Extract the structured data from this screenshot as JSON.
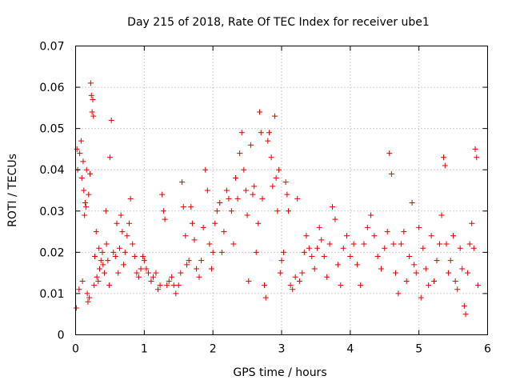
{
  "chart_data": {
    "type": "scatter",
    "title": "Day 215 of 2018, Rate Of TEC Index for receiver ube1",
    "xlabel": "GPS time / hours",
    "ylabel": "ROTI / TECUs",
    "xlim": [
      0,
      6
    ],
    "ylim": [
      0,
      0.07
    ],
    "xticks": [
      "0",
      "1",
      "2",
      "3",
      "4",
      "5",
      "6"
    ],
    "yticks": [
      "0",
      "0.01",
      "0.02",
      "0.03",
      "0.04",
      "0.05",
      "0.06",
      "0.07"
    ],
    "grid": true,
    "marker": "+",
    "color": "#e00000",
    "series": [
      {
        "name": "ube1",
        "points": [
          [
            0.01,
            0.0065
          ],
          [
            0.02,
            0.045
          ],
          [
            0.03,
            0.04
          ],
          [
            0.05,
            0.011
          ],
          [
            0.06,
            0.044
          ],
          [
            0.08,
            0.047
          ],
          [
            0.09,
            0.038
          ],
          [
            0.1,
            0.013
          ],
          [
            0.11,
            0.042
          ],
          [
            0.12,
            0.035
          ],
          [
            0.13,
            0.029
          ],
          [
            0.14,
            0.032
          ],
          [
            0.15,
            0.031
          ],
          [
            0.16,
            0.04
          ],
          [
            0.17,
            0.01
          ],
          [
            0.18,
            0.008
          ],
          [
            0.19,
            0.034
          ],
          [
            0.2,
            0.009
          ],
          [
            0.21,
            0.039
          ],
          [
            0.22,
            0.061
          ],
          [
            0.23,
            0.058
          ],
          [
            0.24,
            0.054
          ],
          [
            0.25,
            0.057
          ],
          [
            0.26,
            0.053
          ],
          [
            0.27,
            0.012
          ],
          [
            0.28,
            0.019
          ],
          [
            0.3,
            0.025
          ],
          [
            0.31,
            0.014
          ],
          [
            0.33,
            0.013
          ],
          [
            0.34,
            0.021
          ],
          [
            0.35,
            0.016
          ],
          [
            0.37,
            0.018
          ],
          [
            0.39,
            0.02
          ],
          [
            0.4,
            0.017
          ],
          [
            0.42,
            0.015
          ],
          [
            0.44,
            0.03
          ],
          [
            0.45,
            0.022
          ],
          [
            0.47,
            0.018
          ],
          [
            0.49,
            0.012
          ],
          [
            0.5,
            0.043
          ],
          [
            0.52,
            0.052
          ],
          [
            0.55,
            0.02
          ],
          [
            0.58,
            0.019
          ],
          [
            0.6,
            0.027
          ],
          [
            0.62,
            0.015
          ],
          [
            0.64,
            0.021
          ],
          [
            0.66,
            0.029
          ],
          [
            0.68,
            0.025
          ],
          [
            0.7,
            0.017
          ],
          [
            0.72,
            0.02
          ],
          [
            0.75,
            0.024
          ],
          [
            0.78,
            0.027
          ],
          [
            0.8,
            0.033
          ],
          [
            0.83,
            0.022
          ],
          [
            0.86,
            0.019
          ],
          [
            0.89,
            0.015
          ],
          [
            0.92,
            0.014
          ],
          [
            0.95,
            0.016
          ],
          [
            0.98,
            0.019
          ],
          [
            1.0,
            0.018
          ],
          [
            1.03,
            0.016
          ],
          [
            1.06,
            0.015
          ],
          [
            1.1,
            0.013
          ],
          [
            1.13,
            0.014
          ],
          [
            1.17,
            0.015
          ],
          [
            1.2,
            0.011
          ],
          [
            1.23,
            0.012
          ],
          [
            1.26,
            0.034
          ],
          [
            1.28,
            0.03
          ],
          [
            1.3,
            0.028
          ],
          [
            1.33,
            0.012
          ],
          [
            1.36,
            0.013
          ],
          [
            1.4,
            0.014
          ],
          [
            1.43,
            0.012
          ],
          [
            1.46,
            0.01
          ],
          [
            1.5,
            0.012
          ],
          [
            1.53,
            0.015
          ],
          [
            1.55,
            0.037
          ],
          [
            1.57,
            0.031
          ],
          [
            1.6,
            0.024
          ],
          [
            1.62,
            0.017
          ],
          [
            1.65,
            0.018
          ],
          [
            1.68,
            0.031
          ],
          [
            1.7,
            0.027
          ],
          [
            1.73,
            0.023
          ],
          [
            1.76,
            0.016
          ],
          [
            1.8,
            0.014
          ],
          [
            1.83,
            0.018
          ],
          [
            1.86,
            0.026
          ],
          [
            1.89,
            0.04
          ],
          [
            1.92,
            0.035
          ],
          [
            1.95,
            0.022
          ],
          [
            1.98,
            0.016
          ],
          [
            2.0,
            0.02
          ],
          [
            2.03,
            0.027
          ],
          [
            2.06,
            0.03
          ],
          [
            2.1,
            0.032
          ],
          [
            2.13,
            0.02
          ],
          [
            2.16,
            0.025
          ],
          [
            2.2,
            0.035
          ],
          [
            2.23,
            0.033
          ],
          [
            2.27,
            0.03
          ],
          [
            2.3,
            0.022
          ],
          [
            2.33,
            0.038
          ],
          [
            2.36,
            0.033
          ],
          [
            2.39,
            0.044
          ],
          [
            2.42,
            0.049
          ],
          [
            2.45,
            0.04
          ],
          [
            2.48,
            0.035
          ],
          [
            2.5,
            0.029
          ],
          [
            2.52,
            0.013
          ],
          [
            2.55,
            0.046
          ],
          [
            2.58,
            0.034
          ],
          [
            2.6,
            0.036
          ],
          [
            2.63,
            0.02
          ],
          [
            2.66,
            0.027
          ],
          [
            2.68,
            0.054
          ],
          [
            2.7,
            0.049
          ],
          [
            2.72,
            0.033
          ],
          [
            2.75,
            0.012
          ],
          [
            2.77,
            0.009
          ],
          [
            2.8,
            0.047
          ],
          [
            2.82,
            0.049
          ],
          [
            2.85,
            0.043
          ],
          [
            2.87,
            0.036
          ],
          [
            2.9,
            0.053
          ],
          [
            2.92,
            0.038
          ],
          [
            2.94,
            0.03
          ],
          [
            2.96,
            0.04
          ],
          [
            2.98,
            0.015
          ],
          [
            3.0,
            0.018
          ],
          [
            3.03,
            0.02
          ],
          [
            3.06,
            0.037
          ],
          [
            3.08,
            0.034
          ],
          [
            3.1,
            0.03
          ],
          [
            3.13,
            0.012
          ],
          [
            3.16,
            0.011
          ],
          [
            3.2,
            0.014
          ],
          [
            3.23,
            0.033
          ],
          [
            3.26,
            0.013
          ],
          [
            3.3,
            0.015
          ],
          [
            3.33,
            0.02
          ],
          [
            3.36,
            0.024
          ],
          [
            3.4,
            0.021
          ],
          [
            3.44,
            0.019
          ],
          [
            3.48,
            0.016
          ],
          [
            3.52,
            0.021
          ],
          [
            3.55,
            0.026
          ],
          [
            3.58,
            0.023
          ],
          [
            3.62,
            0.019
          ],
          [
            3.66,
            0.014
          ],
          [
            3.7,
            0.022
          ],
          [
            3.74,
            0.031
          ],
          [
            3.78,
            0.028
          ],
          [
            3.82,
            0.017
          ],
          [
            3.86,
            0.012
          ],
          [
            3.9,
            0.021
          ],
          [
            3.95,
            0.024
          ],
          [
            4.0,
            0.019
          ],
          [
            4.05,
            0.022
          ],
          [
            4.1,
            0.017
          ],
          [
            4.15,
            0.012
          ],
          [
            4.2,
            0.022
          ],
          [
            4.25,
            0.026
          ],
          [
            4.3,
            0.029
          ],
          [
            4.35,
            0.024
          ],
          [
            4.4,
            0.019
          ],
          [
            4.45,
            0.016
          ],
          [
            4.5,
            0.021
          ],
          [
            4.54,
            0.025
          ],
          [
            4.57,
            0.044
          ],
          [
            4.6,
            0.039
          ],
          [
            4.63,
            0.022
          ],
          [
            4.66,
            0.015
          ],
          [
            4.7,
            0.01
          ],
          [
            4.74,
            0.022
          ],
          [
            4.78,
            0.025
          ],
          [
            4.82,
            0.013
          ],
          [
            4.86,
            0.019
          ],
          [
            4.9,
            0.032
          ],
          [
            4.93,
            0.017
          ],
          [
            4.96,
            0.015
          ],
          [
            5.0,
            0.026
          ],
          [
            5.03,
            0.009
          ],
          [
            5.06,
            0.021
          ],
          [
            5.1,
            0.016
          ],
          [
            5.14,
            0.012
          ],
          [
            5.18,
            0.024
          ],
          [
            5.22,
            0.013
          ],
          [
            5.26,
            0.018
          ],
          [
            5.3,
            0.022
          ],
          [
            5.33,
            0.029
          ],
          [
            5.36,
            0.043
          ],
          [
            5.38,
            0.041
          ],
          [
            5.4,
            0.022
          ],
          [
            5.43,
            0.015
          ],
          [
            5.46,
            0.018
          ],
          [
            5.5,
            0.024
          ],
          [
            5.53,
            0.013
          ],
          [
            5.56,
            0.011
          ],
          [
            5.6,
            0.021
          ],
          [
            5.63,
            0.016
          ],
          [
            5.66,
            0.007
          ],
          [
            5.68,
            0.005
          ],
          [
            5.71,
            0.015
          ],
          [
            5.74,
            0.022
          ],
          [
            5.77,
            0.027
          ],
          [
            5.8,
            0.021
          ],
          [
            5.82,
            0.045
          ],
          [
            5.84,
            0.043
          ],
          [
            5.86,
            0.012
          ]
        ]
      }
    ]
  }
}
